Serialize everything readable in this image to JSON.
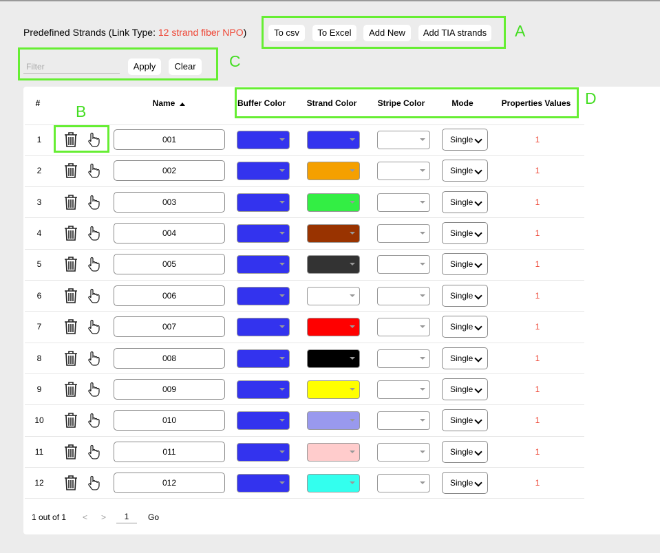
{
  "header": {
    "title": "Predefined Strands (Link Type:",
    "link_type": "12 strand fiber NPO",
    "title_suffix": ")"
  },
  "toolbar": {
    "buttons": [
      "To csv",
      "To Excel",
      "Add New",
      "Add TIA strands"
    ]
  },
  "filter": {
    "placeholder": "Filter",
    "apply": "Apply",
    "clear": "Clear"
  },
  "annotations": {
    "a": "A",
    "b": "B",
    "c": "C",
    "d": "D"
  },
  "table": {
    "columns": [
      "#",
      "Name",
      "Buffer Color",
      "Strand Color",
      "Stripe Color",
      "Mode",
      "Properties Values"
    ],
    "rows": [
      {
        "number": 1,
        "name": "001",
        "buffer_color": "#3333ee",
        "strand_color": "#3333ee",
        "mode": "Single",
        "properties": "1"
      },
      {
        "number": 2,
        "name": "002",
        "buffer_color": "#3333ee",
        "strand_color": "#f5a000",
        "mode": "Single",
        "properties": "1"
      },
      {
        "number": 3,
        "name": "003",
        "buffer_color": "#3333ee",
        "strand_color": "#33ee44",
        "mode": "Single",
        "properties": "1"
      },
      {
        "number": 4,
        "name": "004",
        "buffer_color": "#3333ee",
        "strand_color": "#993300",
        "mode": "Single",
        "properties": "1"
      },
      {
        "number": 5,
        "name": "005",
        "buffer_color": "#3333ee",
        "strand_color": "#333333",
        "mode": "Single",
        "properties": "1"
      },
      {
        "number": 6,
        "name": "006",
        "buffer_color": "#3333ee",
        "strand_color": "#ffffff",
        "mode": "Single",
        "properties": "1"
      },
      {
        "number": 7,
        "name": "007",
        "buffer_color": "#3333ee",
        "strand_color": "#ff0000",
        "mode": "Single",
        "properties": "1"
      },
      {
        "number": 8,
        "name": "008",
        "buffer_color": "#3333ee",
        "strand_color": "#000000",
        "mode": "Single",
        "properties": "1"
      },
      {
        "number": 9,
        "name": "009",
        "buffer_color": "#3333ee",
        "strand_color": "#ffff00",
        "mode": "Single",
        "properties": "1"
      },
      {
        "number": 10,
        "name": "010",
        "buffer_color": "#3333ee",
        "strand_color": "#9999ee",
        "mode": "Single",
        "properties": "1"
      },
      {
        "number": 11,
        "name": "011",
        "buffer_color": "#3333ee",
        "strand_color": "#ffcccc",
        "mode": "Single",
        "properties": "1"
      },
      {
        "number": 12,
        "name": "012",
        "buffer_color": "#3333ee",
        "strand_color": "#33ffee",
        "mode": "Single",
        "properties": "1"
      }
    ]
  },
  "pagination": {
    "summary": "1 out of 1",
    "prev": "<",
    "next": ">",
    "page": "1",
    "go": "Go"
  }
}
